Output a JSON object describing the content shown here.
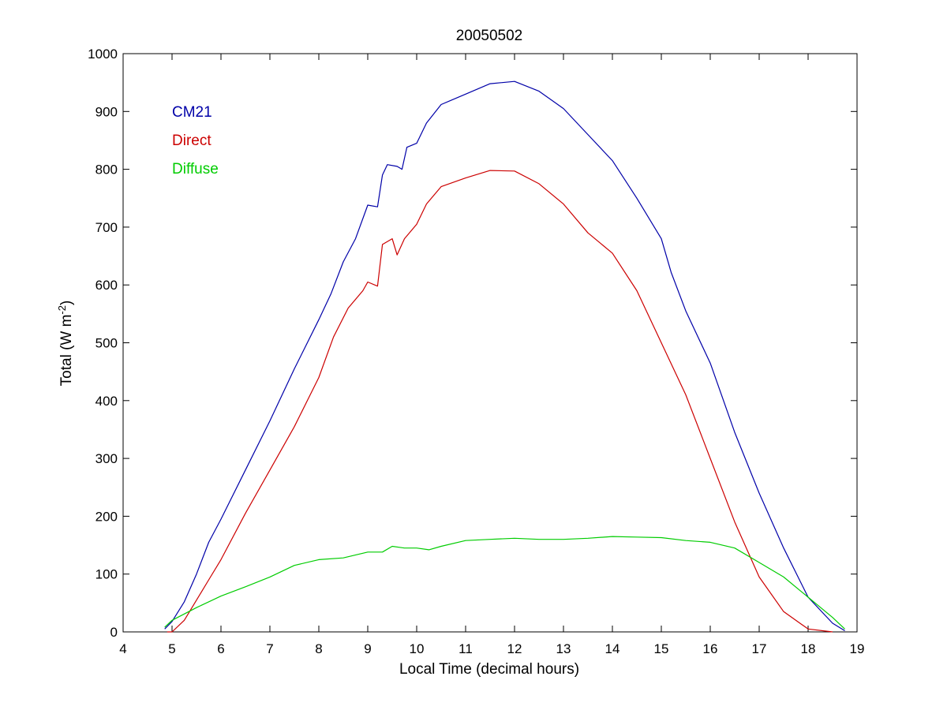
{
  "chart_data": {
    "type": "line",
    "title": "20050502",
    "xlabel": "Local Time (decimal hours)",
    "ylabel_main": "Total (W m",
    "ylabel_sup": "-2",
    "ylabel_close": ")",
    "xlim": [
      4,
      19
    ],
    "ylim": [
      0,
      1000
    ],
    "xticks": [
      4,
      5,
      6,
      7,
      8,
      9,
      10,
      11,
      12,
      13,
      14,
      15,
      16,
      17,
      18,
      19
    ],
    "yticks": [
      0,
      100,
      200,
      300,
      400,
      500,
      600,
      700,
      800,
      900,
      1000
    ],
    "grid": false,
    "legend_placement": "top-left inside",
    "series": [
      {
        "name": "CM21",
        "color": "#0000a8",
        "points": [
          [
            4.85,
            5
          ],
          [
            5,
            18
          ],
          [
            5.25,
            52
          ],
          [
            5.5,
            100
          ],
          [
            5.75,
            155
          ],
          [
            6,
            195
          ],
          [
            6.5,
            280
          ],
          [
            7,
            365
          ],
          [
            7.5,
            455
          ],
          [
            8,
            540
          ],
          [
            8.25,
            585
          ],
          [
            8.5,
            640
          ],
          [
            8.75,
            680
          ],
          [
            9,
            738
          ],
          [
            9.2,
            735
          ],
          [
            9.3,
            790
          ],
          [
            9.4,
            808
          ],
          [
            9.6,
            805
          ],
          [
            9.7,
            800
          ],
          [
            9.8,
            838
          ],
          [
            10,
            845
          ],
          [
            10.2,
            880
          ],
          [
            10.5,
            912
          ],
          [
            11,
            930
          ],
          [
            11.5,
            948
          ],
          [
            12,
            952
          ],
          [
            12.5,
            935
          ],
          [
            13,
            905
          ],
          [
            13.5,
            860
          ],
          [
            14,
            815
          ],
          [
            14.5,
            750
          ],
          [
            15,
            680
          ],
          [
            15.2,
            622
          ],
          [
            15.5,
            555
          ],
          [
            16,
            465
          ],
          [
            16.5,
            345
          ],
          [
            17,
            240
          ],
          [
            17.5,
            145
          ],
          [
            18,
            60
          ],
          [
            18.5,
            15
          ],
          [
            18.75,
            2
          ]
        ]
      },
      {
        "name": "Direct",
        "color": "#cc0000",
        "points": [
          [
            4.9,
            0
          ],
          [
            5,
            0
          ],
          [
            5.25,
            20
          ],
          [
            5.5,
            55
          ],
          [
            5.75,
            90
          ],
          [
            6,
            125
          ],
          [
            6.5,
            205
          ],
          [
            7,
            280
          ],
          [
            7.5,
            355
          ],
          [
            8,
            440
          ],
          [
            8.3,
            510
          ],
          [
            8.6,
            560
          ],
          [
            8.9,
            590
          ],
          [
            9,
            605
          ],
          [
            9.2,
            598
          ],
          [
            9.3,
            670
          ],
          [
            9.5,
            680
          ],
          [
            9.6,
            652
          ],
          [
            9.75,
            680
          ],
          [
            10,
            705
          ],
          [
            10.2,
            740
          ],
          [
            10.5,
            770
          ],
          [
            11,
            785
          ],
          [
            11.5,
            798
          ],
          [
            12,
            797
          ],
          [
            12.5,
            775
          ],
          [
            13,
            740
          ],
          [
            13.5,
            690
          ],
          [
            14,
            655
          ],
          [
            14.5,
            590
          ],
          [
            15,
            500
          ],
          [
            15.5,
            410
          ],
          [
            16,
            300
          ],
          [
            16.5,
            190
          ],
          [
            17,
            95
          ],
          [
            17.5,
            35
          ],
          [
            18,
            5
          ],
          [
            18.5,
            0
          ]
        ]
      },
      {
        "name": "Diffuse",
        "color": "#00cc00",
        "points": [
          [
            4.85,
            8
          ],
          [
            5,
            20
          ],
          [
            5.5,
            42
          ],
          [
            6,
            62
          ],
          [
            6.5,
            78
          ],
          [
            7,
            95
          ],
          [
            7.5,
            115
          ],
          [
            8,
            125
          ],
          [
            8.5,
            128
          ],
          [
            9,
            138
          ],
          [
            9.3,
            138
          ],
          [
            9.5,
            148
          ],
          [
            9.75,
            145
          ],
          [
            10,
            145
          ],
          [
            10.25,
            142
          ],
          [
            10.5,
            148
          ],
          [
            11,
            158
          ],
          [
            11.5,
            160
          ],
          [
            12,
            162
          ],
          [
            12.5,
            160
          ],
          [
            13,
            160
          ],
          [
            13.5,
            162
          ],
          [
            14,
            165
          ],
          [
            14.5,
            164
          ],
          [
            15,
            163
          ],
          [
            15.5,
            158
          ],
          [
            16,
            155
          ],
          [
            16.5,
            145
          ],
          [
            17,
            120
          ],
          [
            17.5,
            95
          ],
          [
            18,
            60
          ],
          [
            18.5,
            25
          ],
          [
            18.75,
            5
          ]
        ]
      }
    ]
  }
}
